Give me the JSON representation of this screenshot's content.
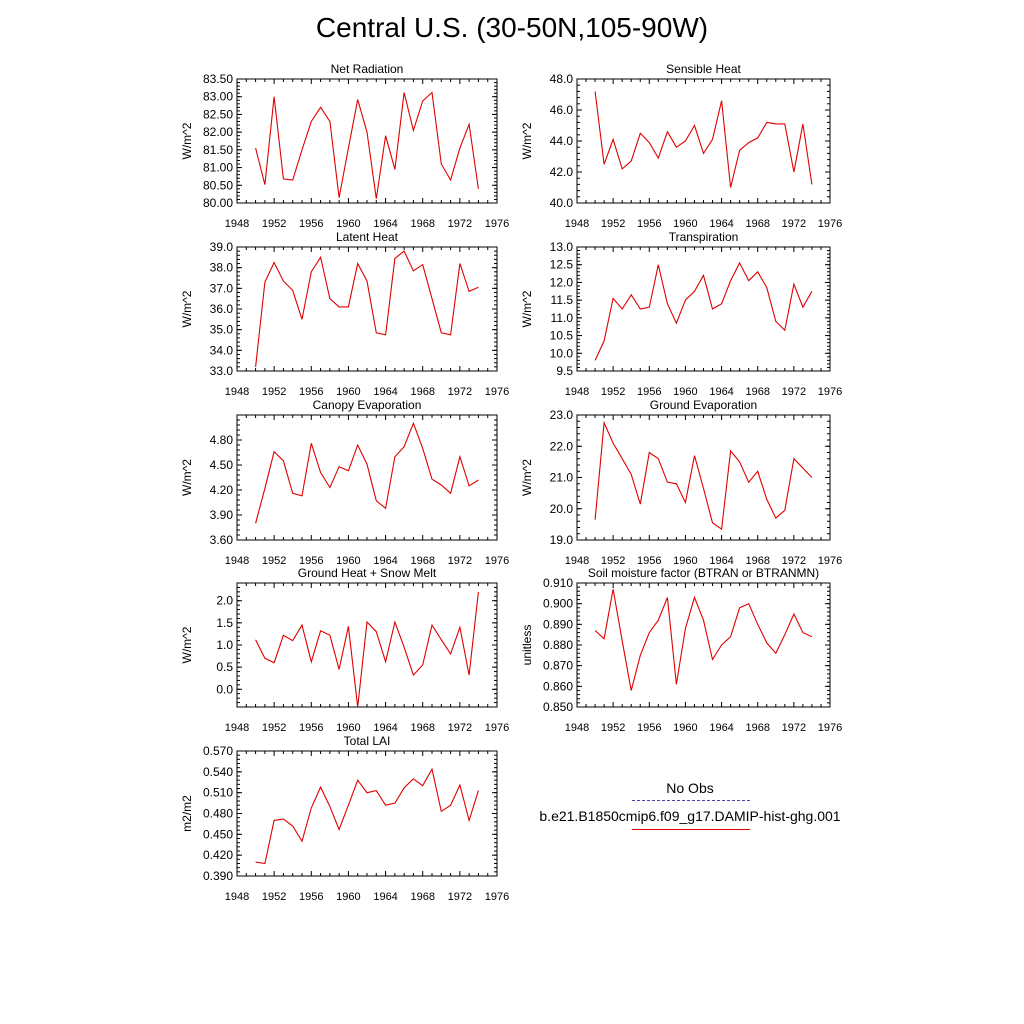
{
  "page": {
    "title": "Central U.S. (30-50N,105-90W)"
  },
  "legend": {
    "title": "No Obs",
    "model_label": "b.e21.B1850cmip6.f09_g17.DAMIP-hist-ghg.001",
    "obs_color": "#4444aa",
    "model_color": "#e00000"
  },
  "chart_data": [
    {
      "type": "line",
      "title": "Net Radiation",
      "ylabel": "W/m^2",
      "xlim": [
        1948,
        1976
      ],
      "ylim": [
        80.0,
        83.5
      ],
      "xticks": [
        "1948",
        "1952",
        "1956",
        "1960",
        "1964",
        "1968",
        "1972",
        "1976"
      ],
      "yticks": [
        "80.00",
        "80.50",
        "81.00",
        "81.50",
        "82.00",
        "82.50",
        "83.00",
        "83.50"
      ],
      "x": [
        1950,
        1951,
        1952,
        1953,
        1954,
        1955,
        1956,
        1957,
        1958,
        1959,
        1960,
        1961,
        1962,
        1963,
        1964,
        1965,
        1966,
        1967,
        1968,
        1969,
        1970,
        1971,
        1972,
        1973,
        1974
      ],
      "series": [
        {
          "values": [
            81.55,
            80.52,
            83.0,
            80.68,
            80.65,
            81.5,
            82.3,
            82.7,
            82.3,
            80.15,
            81.55,
            82.92,
            82.0,
            80.12,
            81.9,
            80.95,
            83.12,
            82.05,
            82.88,
            83.12,
            81.1,
            80.65,
            81.55,
            82.22,
            80.4
          ]
        }
      ]
    },
    {
      "type": "line",
      "title": "Sensible Heat",
      "ylabel": "W/m^2",
      "xlim": [
        1948,
        1976
      ],
      "ylim": [
        40.0,
        48.0
      ],
      "xticks": [
        "1948",
        "1952",
        "1956",
        "1960",
        "1964",
        "1968",
        "1972",
        "1976"
      ],
      "yticks": [
        "40.0",
        "42.0",
        "44.0",
        "46.0",
        "48.0"
      ],
      "x": [
        1950,
        1951,
        1952,
        1953,
        1954,
        1955,
        1956,
        1957,
        1958,
        1959,
        1960,
        1961,
        1962,
        1963,
        1964,
        1965,
        1966,
        1967,
        1968,
        1969,
        1970,
        1971,
        1972,
        1973,
        1974
      ],
      "series": [
        {
          "values": [
            47.2,
            42.5,
            44.1,
            42.2,
            42.7,
            44.5,
            43.9,
            42.9,
            44.6,
            43.6,
            44.0,
            45.0,
            43.2,
            44.1,
            46.6,
            41.0,
            43.4,
            43.9,
            44.2,
            45.2,
            45.1,
            45.1,
            42.0,
            45.1,
            41.2
          ]
        }
      ]
    },
    {
      "type": "line",
      "title": "Latent Heat",
      "ylabel": "W/m^2",
      "xlim": [
        1948,
        1976
      ],
      "ylim": [
        33.0,
        39.0
      ],
      "xticks": [
        "1948",
        "1952",
        "1956",
        "1960",
        "1964",
        "1968",
        "1972",
        "1976"
      ],
      "yticks": [
        "33.0",
        "34.0",
        "35.0",
        "36.0",
        "37.0",
        "38.0",
        "39.0"
      ],
      "x": [
        1950,
        1951,
        1952,
        1953,
        1954,
        1955,
        1956,
        1957,
        1958,
        1959,
        1960,
        1961,
        1962,
        1963,
        1964,
        1965,
        1966,
        1967,
        1968,
        1969,
        1970,
        1971,
        1972,
        1973,
        1974
      ],
      "series": [
        {
          "values": [
            33.2,
            37.3,
            38.25,
            37.35,
            36.9,
            35.5,
            37.8,
            38.5,
            36.5,
            36.1,
            36.1,
            38.2,
            37.35,
            34.85,
            34.75,
            38.45,
            38.8,
            37.85,
            38.15,
            36.5,
            34.85,
            34.75,
            38.2,
            36.85,
            37.05
          ]
        }
      ]
    },
    {
      "type": "line",
      "title": "Transpiration",
      "ylabel": "W/m^2",
      "xlim": [
        1948,
        1976
      ],
      "ylim": [
        9.5,
        13.0
      ],
      "xticks": [
        "1948",
        "1952",
        "1956",
        "1960",
        "1964",
        "1968",
        "1972",
        "1976"
      ],
      "yticks": [
        "9.5",
        "10.0",
        "10.5",
        "11.0",
        "11.5",
        "12.0",
        "12.5",
        "13.0"
      ],
      "x": [
        1950,
        1951,
        1952,
        1953,
        1954,
        1955,
        1956,
        1957,
        1958,
        1959,
        1960,
        1961,
        1962,
        1963,
        1964,
        1965,
        1966,
        1967,
        1968,
        1969,
        1970,
        1971,
        1972,
        1973,
        1974
      ],
      "series": [
        {
          "values": [
            9.8,
            10.35,
            11.55,
            11.25,
            11.65,
            11.25,
            11.3,
            12.5,
            11.4,
            10.85,
            11.5,
            11.75,
            12.2,
            11.25,
            11.4,
            12.05,
            12.55,
            12.05,
            12.3,
            11.85,
            10.9,
            10.65,
            11.95,
            11.3,
            11.75
          ]
        }
      ]
    },
    {
      "type": "line",
      "title": "Canopy Evaporation",
      "ylabel": "W/m^2",
      "xlim": [
        1948,
        1976
      ],
      "ylim": [
        3.6,
        5.1
      ],
      "xticks": [
        "1948",
        "1952",
        "1956",
        "1960",
        "1964",
        "1968",
        "1972",
        "1976"
      ],
      "yticks": [
        "3.60",
        "3.90",
        "4.20",
        "4.50",
        "4.80"
      ],
      "x": [
        1950,
        1951,
        1952,
        1953,
        1954,
        1955,
        1956,
        1957,
        1958,
        1959,
        1960,
        1961,
        1962,
        1963,
        1964,
        1965,
        1966,
        1967,
        1968,
        1969,
        1970,
        1971,
        1972,
        1973,
        1974
      ],
      "series": [
        {
          "values": [
            3.8,
            4.22,
            4.66,
            4.55,
            4.16,
            4.13,
            4.76,
            4.41,
            4.23,
            4.48,
            4.43,
            4.74,
            4.51,
            4.07,
            3.98,
            4.6,
            4.72,
            5.0,
            4.7,
            4.33,
            4.26,
            4.16,
            4.6,
            4.25,
            4.32
          ]
        }
      ]
    },
    {
      "type": "line",
      "title": "Ground Evaporation",
      "ylabel": "W/m^2",
      "xlim": [
        1948,
        1976
      ],
      "ylim": [
        19.0,
        23.0
      ],
      "xticks": [
        "1948",
        "1952",
        "1956",
        "1960",
        "1964",
        "1968",
        "1972",
        "1976"
      ],
      "yticks": [
        "19.0",
        "20.0",
        "21.0",
        "22.0",
        "23.0"
      ],
      "x": [
        1950,
        1951,
        1952,
        1953,
        1954,
        1955,
        1956,
        1957,
        1958,
        1959,
        1960,
        1961,
        1962,
        1963,
        1964,
        1965,
        1966,
        1967,
        1968,
        1969,
        1970,
        1971,
        1972,
        1973,
        1974
      ],
      "series": [
        {
          "values": [
            19.65,
            22.75,
            22.1,
            21.6,
            21.1,
            20.15,
            21.8,
            21.6,
            20.85,
            20.8,
            20.2,
            21.7,
            20.65,
            19.55,
            19.35,
            21.85,
            21.5,
            20.85,
            21.2,
            20.3,
            19.7,
            19.95,
            21.6,
            21.3,
            21.0
          ]
        }
      ]
    },
    {
      "type": "line",
      "title": "Ground Heat + Snow Melt",
      "ylabel": "W/m^2",
      "xlim": [
        1948,
        1976
      ],
      "ylim": [
        -0.4,
        2.4
      ],
      "xticks": [
        "1948",
        "1952",
        "1956",
        "1960",
        "1964",
        "1968",
        "1972",
        "1976"
      ],
      "yticks": [
        "0.0",
        "0.5",
        "1.0",
        "1.5",
        "2.0"
      ],
      "x": [
        1950,
        1951,
        1952,
        1953,
        1954,
        1955,
        1956,
        1957,
        1958,
        1959,
        1960,
        1961,
        1962,
        1963,
        1964,
        1965,
        1966,
        1967,
        1968,
        1969,
        1970,
        1971,
        1972,
        1973,
        1974
      ],
      "series": [
        {
          "values": [
            1.12,
            0.7,
            0.6,
            1.22,
            1.1,
            1.45,
            0.62,
            1.32,
            1.22,
            0.45,
            1.42,
            -0.4,
            1.52,
            1.3,
            0.62,
            1.52,
            0.95,
            0.32,
            0.55,
            1.45,
            1.12,
            0.8,
            1.4,
            0.32,
            2.2
          ]
        }
      ]
    },
    {
      "type": "line",
      "title": "Soil moisture factor (BTRAN or BTRANMN)",
      "ylabel": "unitless",
      "xlim": [
        1948,
        1976
      ],
      "ylim": [
        0.85,
        0.91
      ],
      "xticks": [
        "1948",
        "1952",
        "1956",
        "1960",
        "1964",
        "1968",
        "1972",
        "1976"
      ],
      "yticks": [
        "0.850",
        "0.860",
        "0.870",
        "0.880",
        "0.890",
        "0.900",
        "0.910"
      ],
      "x": [
        1950,
        1951,
        1952,
        1953,
        1954,
        1955,
        1956,
        1957,
        1958,
        1959,
        1960,
        1961,
        1962,
        1963,
        1964,
        1965,
        1966,
        1967,
        1968,
        1969,
        1970,
        1971,
        1972,
        1973,
        1974
      ],
      "series": [
        {
          "values": [
            0.887,
            0.883,
            0.907,
            0.882,
            0.858,
            0.875,
            0.886,
            0.892,
            0.903,
            0.861,
            0.888,
            0.903,
            0.892,
            0.873,
            0.88,
            0.884,
            0.898,
            0.9,
            0.89,
            0.881,
            0.876,
            0.885,
            0.895,
            0.886,
            0.884
          ]
        }
      ]
    },
    {
      "type": "line",
      "title": "Total LAI",
      "ylabel": "m2/m2",
      "xlim": [
        1948,
        1976
      ],
      "ylim": [
        0.39,
        0.57
      ],
      "xticks": [
        "1948",
        "1952",
        "1956",
        "1960",
        "1964",
        "1968",
        "1972",
        "1976"
      ],
      "yticks": [
        "0.390",
        "0.420",
        "0.450",
        "0.480",
        "0.510",
        "0.540",
        "0.570"
      ],
      "x": [
        1950,
        1951,
        1952,
        1953,
        1954,
        1955,
        1956,
        1957,
        1958,
        1959,
        1960,
        1961,
        1962,
        1963,
        1964,
        1965,
        1966,
        1967,
        1968,
        1969,
        1970,
        1971,
        1972,
        1973,
        1974
      ],
      "series": [
        {
          "values": [
            0.41,
            0.408,
            0.47,
            0.472,
            0.462,
            0.44,
            0.488,
            0.518,
            0.49,
            0.457,
            0.492,
            0.528,
            0.51,
            0.513,
            0.492,
            0.495,
            0.517,
            0.53,
            0.52,
            0.544,
            0.483,
            0.492,
            0.521,
            0.47,
            0.513
          ]
        }
      ]
    }
  ]
}
